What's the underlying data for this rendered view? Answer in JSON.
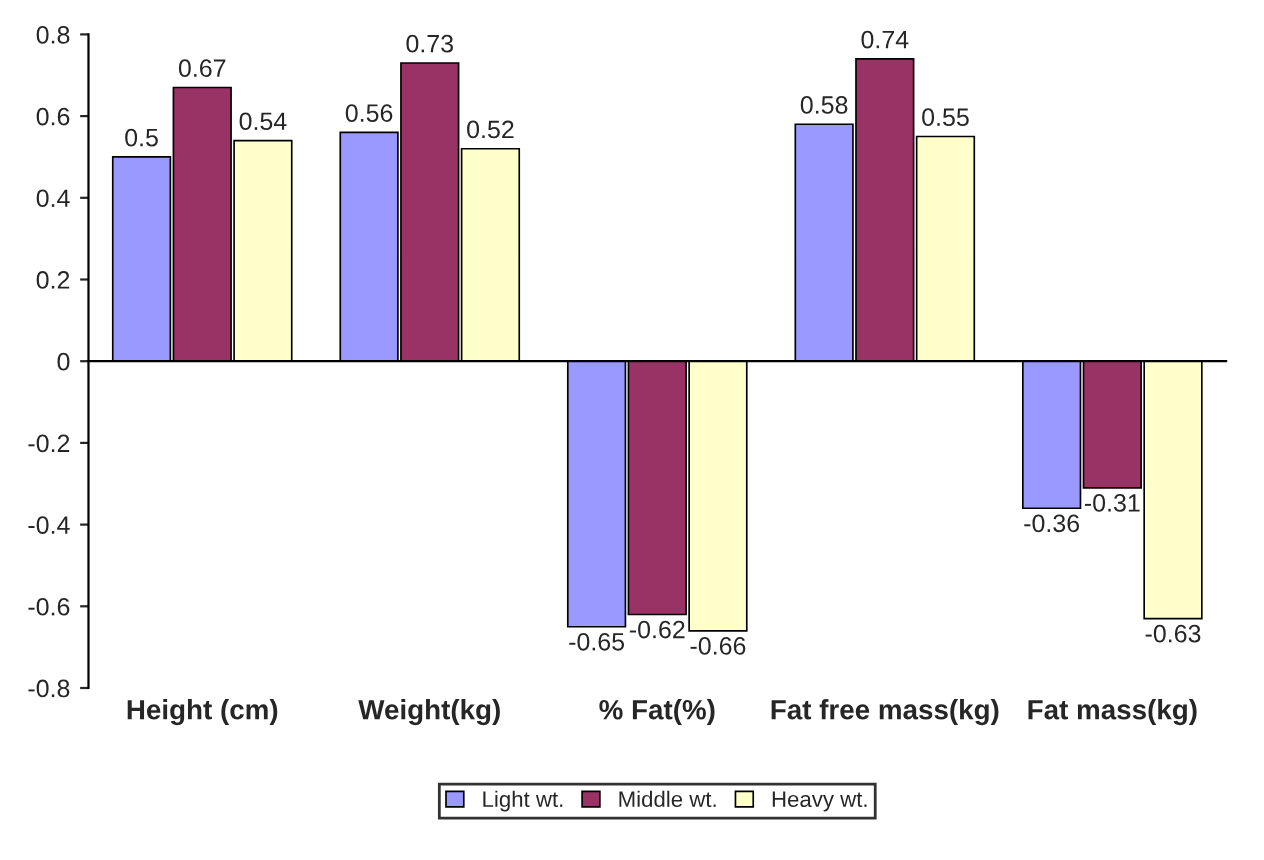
{
  "chart_data": {
    "type": "bar",
    "categories": [
      "Height (cm)",
      "Weight(kg)",
      "% Fat(%)",
      "Fat free mass(kg)",
      "Fat mass(kg)"
    ],
    "series": [
      {
        "name": "Light wt.",
        "color": "#9999ff",
        "values": [
          0.5,
          0.56,
          -0.65,
          0.58,
          -0.36
        ]
      },
      {
        "name": "Middle wt.",
        "color": "#993366",
        "values": [
          0.67,
          0.73,
          -0.62,
          0.74,
          -0.31
        ]
      },
      {
        "name": "Heavy wt.",
        "color": "#ffffcc",
        "values": [
          0.54,
          0.52,
          -0.66,
          0.55,
          -0.63
        ]
      }
    ],
    "ylim": [
      -0.8,
      0.8
    ],
    "yticks": [
      -0.8,
      -0.6,
      -0.4,
      -0.2,
      0,
      0.2,
      0.4,
      0.6,
      0.8
    ],
    "data_labels": true,
    "legend": "bottom"
  }
}
